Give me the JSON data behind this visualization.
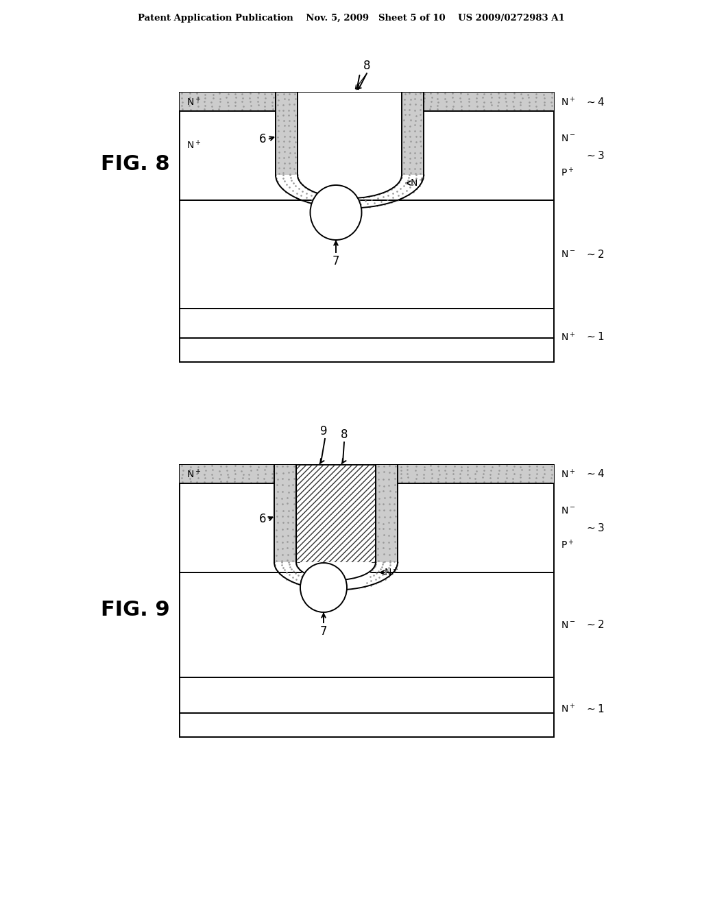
{
  "bg_color": "#ffffff",
  "header": "Patent Application Publication    Nov. 5, 2009   Sheet 5 of 10    US 2009/0272983 A1",
  "lc": "#000000",
  "lw": 1.4,
  "stipple_color": "#aaaaaa",
  "hatch_color": "#555555"
}
